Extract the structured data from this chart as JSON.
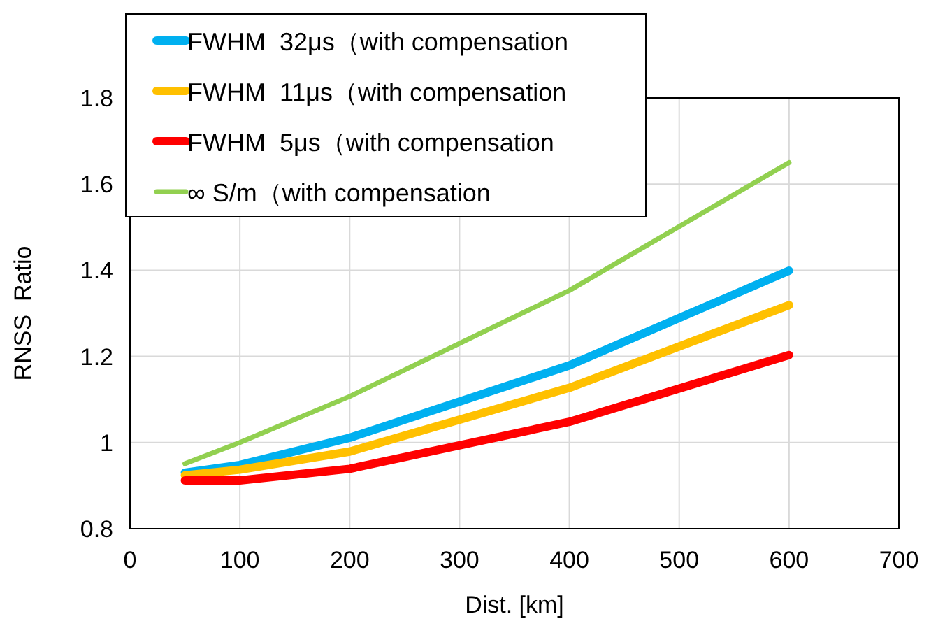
{
  "chart_data": {
    "type": "line",
    "xlabel": "Dist. [km]",
    "ylabel": "RNSS  Ratio",
    "x": [
      50,
      100,
      200,
      400,
      600
    ],
    "series": [
      {
        "name": "FWHM  32μs（with compensation",
        "color": "#00b0f0",
        "values": [
          0.93,
          0.948,
          1.011,
          1.179,
          1.399
        ]
      },
      {
        "name": "FWHM  11μs（with compensation",
        "color": "#ffc000",
        "values": [
          0.924,
          0.937,
          0.979,
          1.127,
          1.319
        ]
      },
      {
        "name": "FWHM  5μs（with compensation",
        "color": "#ff0000",
        "values": [
          0.912,
          0.912,
          0.939,
          1.048,
          1.203
        ]
      },
      {
        "name": "∞ S/m（with compensation",
        "color": "#92d050",
        "values": [
          0.951,
          1.0,
          1.107,
          1.353,
          1.65
        ]
      }
    ],
    "xlim": [
      0,
      700
    ],
    "xticks": [
      0,
      100,
      200,
      300,
      400,
      500,
      600,
      700
    ],
    "ylim": [
      0.8,
      1.8
    ],
    "yticks": [
      0.8,
      1,
      1.2,
      1.4,
      1.6,
      1.8
    ],
    "grid": true,
    "legend": "top left",
    "marker": "none",
    "line_style": "solid"
  }
}
